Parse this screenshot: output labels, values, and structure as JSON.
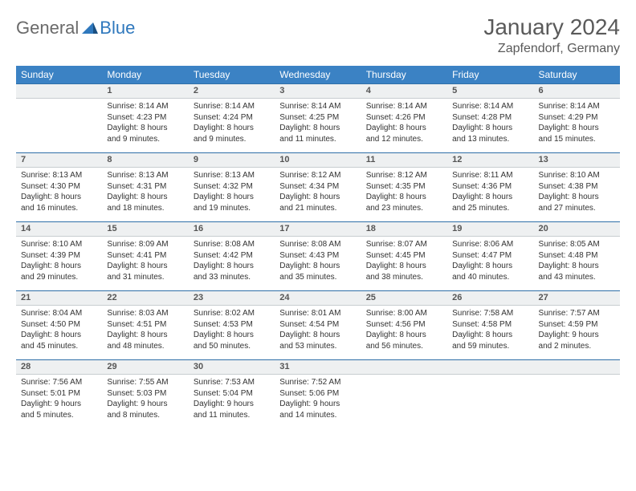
{
  "logo": {
    "text1": "General",
    "text2": "Blue"
  },
  "title": "January 2024",
  "location": "Zapfendorf, Germany",
  "header_color": "#3b82c4",
  "rule_color": "#2f6fa8",
  "daynum_bg": "#eef0f1",
  "weekdays": [
    "Sunday",
    "Monday",
    "Tuesday",
    "Wednesday",
    "Thursday",
    "Friday",
    "Saturday"
  ],
  "weeks": [
    [
      null,
      {
        "n": "1",
        "sr": "Sunrise: 8:14 AM",
        "ss": "Sunset: 4:23 PM",
        "d1": "Daylight: 8 hours",
        "d2": "and 9 minutes."
      },
      {
        "n": "2",
        "sr": "Sunrise: 8:14 AM",
        "ss": "Sunset: 4:24 PM",
        "d1": "Daylight: 8 hours",
        "d2": "and 9 minutes."
      },
      {
        "n": "3",
        "sr": "Sunrise: 8:14 AM",
        "ss": "Sunset: 4:25 PM",
        "d1": "Daylight: 8 hours",
        "d2": "and 11 minutes."
      },
      {
        "n": "4",
        "sr": "Sunrise: 8:14 AM",
        "ss": "Sunset: 4:26 PM",
        "d1": "Daylight: 8 hours",
        "d2": "and 12 minutes."
      },
      {
        "n": "5",
        "sr": "Sunrise: 8:14 AM",
        "ss": "Sunset: 4:28 PM",
        "d1": "Daylight: 8 hours",
        "d2": "and 13 minutes."
      },
      {
        "n": "6",
        "sr": "Sunrise: 8:14 AM",
        "ss": "Sunset: 4:29 PM",
        "d1": "Daylight: 8 hours",
        "d2": "and 15 minutes."
      }
    ],
    [
      {
        "n": "7",
        "sr": "Sunrise: 8:13 AM",
        "ss": "Sunset: 4:30 PM",
        "d1": "Daylight: 8 hours",
        "d2": "and 16 minutes."
      },
      {
        "n": "8",
        "sr": "Sunrise: 8:13 AM",
        "ss": "Sunset: 4:31 PM",
        "d1": "Daylight: 8 hours",
        "d2": "and 18 minutes."
      },
      {
        "n": "9",
        "sr": "Sunrise: 8:13 AM",
        "ss": "Sunset: 4:32 PM",
        "d1": "Daylight: 8 hours",
        "d2": "and 19 minutes."
      },
      {
        "n": "10",
        "sr": "Sunrise: 8:12 AM",
        "ss": "Sunset: 4:34 PM",
        "d1": "Daylight: 8 hours",
        "d2": "and 21 minutes."
      },
      {
        "n": "11",
        "sr": "Sunrise: 8:12 AM",
        "ss": "Sunset: 4:35 PM",
        "d1": "Daylight: 8 hours",
        "d2": "and 23 minutes."
      },
      {
        "n": "12",
        "sr": "Sunrise: 8:11 AM",
        "ss": "Sunset: 4:36 PM",
        "d1": "Daylight: 8 hours",
        "d2": "and 25 minutes."
      },
      {
        "n": "13",
        "sr": "Sunrise: 8:10 AM",
        "ss": "Sunset: 4:38 PM",
        "d1": "Daylight: 8 hours",
        "d2": "and 27 minutes."
      }
    ],
    [
      {
        "n": "14",
        "sr": "Sunrise: 8:10 AM",
        "ss": "Sunset: 4:39 PM",
        "d1": "Daylight: 8 hours",
        "d2": "and 29 minutes."
      },
      {
        "n": "15",
        "sr": "Sunrise: 8:09 AM",
        "ss": "Sunset: 4:41 PM",
        "d1": "Daylight: 8 hours",
        "d2": "and 31 minutes."
      },
      {
        "n": "16",
        "sr": "Sunrise: 8:08 AM",
        "ss": "Sunset: 4:42 PM",
        "d1": "Daylight: 8 hours",
        "d2": "and 33 minutes."
      },
      {
        "n": "17",
        "sr": "Sunrise: 8:08 AM",
        "ss": "Sunset: 4:43 PM",
        "d1": "Daylight: 8 hours",
        "d2": "and 35 minutes."
      },
      {
        "n": "18",
        "sr": "Sunrise: 8:07 AM",
        "ss": "Sunset: 4:45 PM",
        "d1": "Daylight: 8 hours",
        "d2": "and 38 minutes."
      },
      {
        "n": "19",
        "sr": "Sunrise: 8:06 AM",
        "ss": "Sunset: 4:47 PM",
        "d1": "Daylight: 8 hours",
        "d2": "and 40 minutes."
      },
      {
        "n": "20",
        "sr": "Sunrise: 8:05 AM",
        "ss": "Sunset: 4:48 PM",
        "d1": "Daylight: 8 hours",
        "d2": "and 43 minutes."
      }
    ],
    [
      {
        "n": "21",
        "sr": "Sunrise: 8:04 AM",
        "ss": "Sunset: 4:50 PM",
        "d1": "Daylight: 8 hours",
        "d2": "and 45 minutes."
      },
      {
        "n": "22",
        "sr": "Sunrise: 8:03 AM",
        "ss": "Sunset: 4:51 PM",
        "d1": "Daylight: 8 hours",
        "d2": "and 48 minutes."
      },
      {
        "n": "23",
        "sr": "Sunrise: 8:02 AM",
        "ss": "Sunset: 4:53 PM",
        "d1": "Daylight: 8 hours",
        "d2": "and 50 minutes."
      },
      {
        "n": "24",
        "sr": "Sunrise: 8:01 AM",
        "ss": "Sunset: 4:54 PM",
        "d1": "Daylight: 8 hours",
        "d2": "and 53 minutes."
      },
      {
        "n": "25",
        "sr": "Sunrise: 8:00 AM",
        "ss": "Sunset: 4:56 PM",
        "d1": "Daylight: 8 hours",
        "d2": "and 56 minutes."
      },
      {
        "n": "26",
        "sr": "Sunrise: 7:58 AM",
        "ss": "Sunset: 4:58 PM",
        "d1": "Daylight: 8 hours",
        "d2": "and 59 minutes."
      },
      {
        "n": "27",
        "sr": "Sunrise: 7:57 AM",
        "ss": "Sunset: 4:59 PM",
        "d1": "Daylight: 9 hours",
        "d2": "and 2 minutes."
      }
    ],
    [
      {
        "n": "28",
        "sr": "Sunrise: 7:56 AM",
        "ss": "Sunset: 5:01 PM",
        "d1": "Daylight: 9 hours",
        "d2": "and 5 minutes."
      },
      {
        "n": "29",
        "sr": "Sunrise: 7:55 AM",
        "ss": "Sunset: 5:03 PM",
        "d1": "Daylight: 9 hours",
        "d2": "and 8 minutes."
      },
      {
        "n": "30",
        "sr": "Sunrise: 7:53 AM",
        "ss": "Sunset: 5:04 PM",
        "d1": "Daylight: 9 hours",
        "d2": "and 11 minutes."
      },
      {
        "n": "31",
        "sr": "Sunrise: 7:52 AM",
        "ss": "Sunset: 5:06 PM",
        "d1": "Daylight: 9 hours",
        "d2": "and 14 minutes."
      },
      null,
      null,
      null
    ]
  ]
}
